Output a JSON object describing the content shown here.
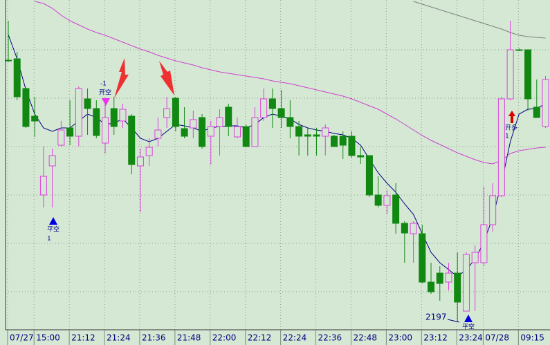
{
  "chart_data": {
    "type": "candlestick",
    "categories": [
      "07/27",
      null,
      null,
      "15:00",
      null,
      null,
      null,
      "21:12",
      null,
      null,
      null,
      "21:24",
      null,
      null,
      null,
      "21:36",
      null,
      null,
      null,
      "21:48",
      null,
      null,
      null,
      "22:00",
      null,
      null,
      null,
      "22:12",
      null,
      null,
      null,
      "22:24",
      null,
      null,
      null,
      "22:36",
      null,
      null,
      null,
      "22:48",
      null,
      null,
      null,
      "23:00",
      null,
      null,
      null,
      "23:12",
      null,
      null,
      null,
      "23:24",
      null,
      null,
      "07/28",
      null,
      null,
      null,
      "09:15",
      null,
      null,
      null
    ],
    "open": [
      2575,
      2577,
      2534,
      2494,
      2380,
      2422,
      2452,
      2477,
      2465,
      2519,
      2505,
      2455,
      2505,
      2487,
      2494,
      2422,
      2437,
      2462,
      2492,
      2520,
      2476,
      2477,
      2492,
      2465,
      2479,
      2507,
      2464,
      2479,
      2450,
      2492,
      2519,
      2505,
      2492,
      2479,
      2467,
      2467,
      2465,
      2465,
      2465,
      2465,
      2437,
      2437,
      2380,
      2365,
      2380,
      2339,
      2324,
      2324,
      2254,
      2267,
      2254,
      2267,
      2212,
      2282,
      2282,
      2337,
      2379,
      2519,
      2590,
      2590,
      2507,
      2479
    ],
    "high": [
      2632,
      2587,
      2534,
      2522,
      2450,
      2447,
      2487,
      2517,
      2537,
      2534,
      2517,
      2512,
      2522,
      2512,
      2497,
      2447,
      2462,
      2492,
      2522,
      2522,
      2507,
      2502,
      2497,
      2487,
      2504,
      2512,
      2492,
      2482,
      2507,
      2534,
      2534,
      2532,
      2517,
      2487,
      2477,
      2477,
      2482,
      2467,
      2472,
      2472,
      2449,
      2437,
      2407,
      2387,
      2397,
      2342,
      2342,
      2337,
      2282,
      2277,
      2282,
      2297,
      2297,
      2307,
      2392,
      2397,
      2522,
      2632,
      2592,
      2590,
      2547,
      2552
    ],
    "low": [
      2572,
      2517,
      2477,
      2464,
      2362,
      2362,
      2450,
      2452,
      2450,
      2467,
      2462,
      2440,
      2467,
      2477,
      2410,
      2355,
      2422,
      2450,
      2477,
      2472,
      2462,
      2462,
      2447,
      2424,
      2437,
      2465,
      2462,
      2450,
      2450,
      2487,
      2477,
      2477,
      2462,
      2437,
      2437,
      2437,
      2437,
      2450,
      2432,
      2434,
      2425,
      2377,
      2362,
      2352,
      2324,
      2282,
      2282,
      2252,
      2237,
      2227,
      2242,
      2197,
      2212,
      2212,
      2277,
      2327,
      2377,
      2517,
      2588,
      2502,
      2492,
      2477
    ],
    "close": [
      2575,
      2522,
      2479,
      2487,
      2407,
      2437,
      2474,
      2465,
      2534,
      2505,
      2466,
      2492,
      2479,
      2504,
      2424,
      2435,
      2449,
      2474,
      2505,
      2479,
      2465,
      2489,
      2450,
      2479,
      2492,
      2479,
      2479,
      2450,
      2492,
      2519,
      2505,
      2492,
      2479,
      2465,
      2465,
      2465,
      2477,
      2450,
      2452,
      2437,
      2435,
      2380,
      2365,
      2379,
      2339,
      2325,
      2339,
      2254,
      2240,
      2252,
      2267,
      2225,
      2294,
      2297,
      2337,
      2379,
      2519,
      2590,
      2590,
      2519,
      2492,
      2547
    ],
    "up_color": "#e040e0",
    "down_color": "#118811",
    "lines": [
      {
        "color": "#000080",
        "values": [
          2612,
          2577,
          2532,
          2497,
          2477,
          2472,
          2477,
          2477,
          2487,
          2497,
          2492,
          2482,
          2484,
          2490,
          2477,
          2462,
          2457,
          2462,
          2472,
          2482,
          2480,
          2477,
          2472,
          2477,
          2479,
          2480,
          2480,
          2477,
          2482,
          2492,
          2497,
          2494,
          2490,
          2482,
          2477,
          2474,
          2472,
          2469,
          2467,
          2462,
          2452,
          2432,
          2412,
          2397,
          2384,
          2367,
          2352,
          2324,
          2297,
          2282,
          2272,
          2262,
          2272,
          2287,
          2312,
          2347,
          2397,
          2457,
          2497,
          2504,
          2505,
          2512
        ]
      },
      {
        "color": "#d040d0",
        "values": [
          null,
          null,
          null,
          2660,
          2657,
          2650,
          2640,
          2632,
          2626,
          2620,
          2615,
          2611,
          2606,
          2601,
          2596,
          2591,
          2587,
          2582,
          2578,
          2574,
          2571,
          2568,
          2564,
          2561,
          2558,
          2556,
          2554,
          2552,
          2550,
          2548,
          2545,
          2543,
          2541,
          2538,
          2535,
          2532,
          2529,
          2526,
          2523,
          2519,
          2514,
          2509,
          2504,
          2497,
          2490,
          2482,
          2474,
          2466,
          2459,
          2453,
          2447,
          2441,
          2436,
          2431,
          2427,
          2425,
          2430,
          2440,
          2444,
          2446,
          2448,
          2449
        ]
      },
      {
        "color": "#808080",
        "values": [
          null,
          null,
          null,
          null,
          null,
          null,
          null,
          null,
          null,
          null,
          null,
          null,
          null,
          null,
          null,
          null,
          null,
          null,
          null,
          null,
          null,
          null,
          null,
          null,
          null,
          null,
          null,
          null,
          null,
          null,
          null,
          null,
          null,
          null,
          null,
          null,
          null,
          null,
          null,
          null,
          null,
          null,
          null,
          null,
          null,
          null,
          2660,
          2656,
          2652,
          2648,
          2644,
          2640,
          2636,
          2632,
          2628,
          2624,
          2620,
          2615,
          2611,
          2609,
          2608,
          2607
        ]
      }
    ],
    "ylim": [
      2187,
      2662
    ],
    "grid_y": [
      2590,
      2520,
      2450,
      2380,
      2310,
      2240
    ],
    "annotations": [
      "平空",
      "1",
      "-1",
      "开空",
      "开多",
      "1",
      "2197",
      "平空"
    ]
  }
}
